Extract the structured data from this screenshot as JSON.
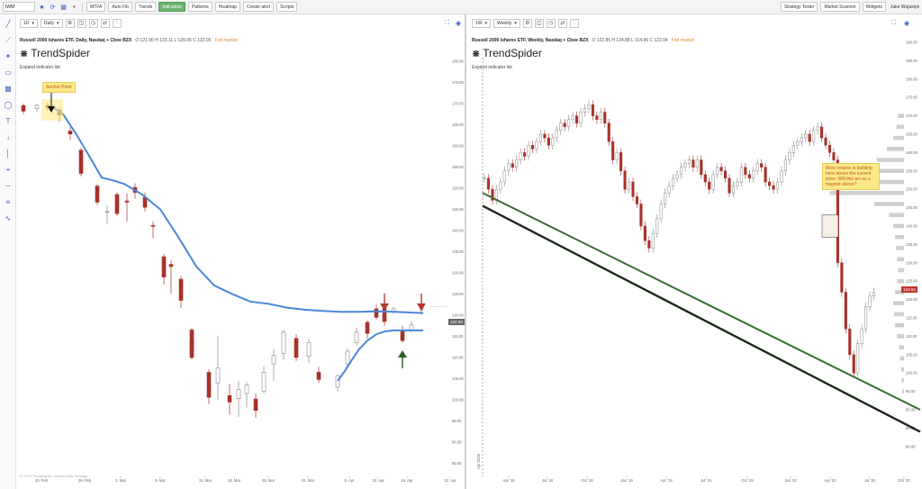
{
  "topbar": {
    "symbol": "IWM",
    "buttons": [
      "MTFA",
      "Auto Fib",
      "Trends",
      "Indicators",
      "Patterns",
      "Heatmap",
      "Create alert",
      "Scripts"
    ],
    "active_button": "Indicators",
    "right_buttons": [
      "Strategy Tester",
      "Market Scanner",
      "Widgets"
    ],
    "user": "Jake Wujastyk"
  },
  "left_chart": {
    "interval_left": "1D",
    "interval": "Daily",
    "title": "Russell 2000 Ishares ETF, Daily, Nasdaq + Cboe BZX",
    "ohlc": "O 121.90   H 123.11   L 120.06   C 122.05",
    "status": "Fed market",
    "logo": "TrendSpider",
    "expand": "Expand indicator list",
    "annotation": "Anchor Point",
    "price_tag": "122.05",
    "watermark": "© 2020 TrendSpider. Market data: Nasdaq",
    "y_labels": [
      "180.00",
      "175.00",
      "170.00",
      "165.00",
      "160.00",
      "155.00",
      "150.00",
      "145.00",
      "140.00",
      "135.00",
      "130.00",
      "125.00",
      "120.00",
      "115.00",
      "110.00",
      "105.00",
      "100.00",
      "95.00",
      "90.00",
      "85.00"
    ],
    "x_labels": [
      "20. Feb",
      "26. Feb",
      "3. Mar",
      "9. Mar",
      "15. Mar",
      "19. Mar",
      "25. Mar",
      "31. Mar",
      "6. Apr",
      "10. Apr",
      "16. Apr",
      "22. Apr"
    ]
  },
  "right_chart": {
    "interval_left": "1W",
    "interval": "Weekly",
    "title": "Russell 2000 Ishares ETF, Weekly, Nasdaq + Cboe BZX",
    "ohlc": "O 122.85   H 124.88   L 114.56   C 122.04",
    "status": "Fed market",
    "logo": "TrendSpider",
    "expand": "Expand indicator list",
    "note": "Most volume is building here above the current price. Will this act as a magnet above?",
    "price_tag": "122.04",
    "y_labels": [
      "190.00",
      "185.00",
      "180.00",
      "175.00",
      "170.00",
      "165.00",
      "160.00",
      "155.00",
      "150.00",
      "145.00",
      "140.00",
      "135.00",
      "130.00",
      "125.00",
      "120.00",
      "115.00",
      "110.00",
      "105.00",
      "100.00",
      "95.00",
      "90.00",
      "85.00",
      "80.00"
    ],
    "x_labels": [
      "Apr '18",
      "Jul '18",
      "Oct '18",
      "Jan '19",
      "Apr '19",
      "Jul '19",
      "Oct '19",
      "Jan '20",
      "Apr '20",
      "Jul '20",
      "Oct '20"
    ],
    "vline_label": "Apr 2018"
  },
  "colors": {
    "up": "#9a9a9a",
    "down": "#a8312a",
    "avwap": "#4a86d8",
    "trend_green": "#3a6b35",
    "trend_dark": "#1c2a1a"
  }
}
